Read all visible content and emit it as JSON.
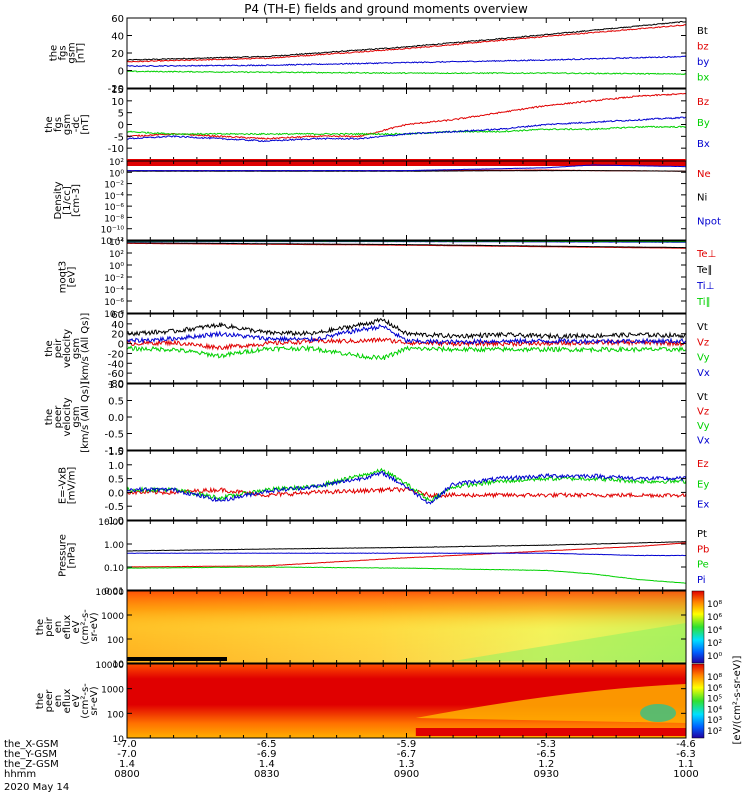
{
  "title": "P4 (TH-E) fields and ground moments overview",
  "colors": {
    "black": "#000000",
    "red": "#e00000",
    "green": "#00d000",
    "blue": "#0000d0"
  },
  "chart_data": [
    {
      "id": "fgs_gsm_total",
      "type": "line",
      "ylabel": [
        "the",
        "fgs",
        "gsm",
        "[nT]"
      ],
      "ylim": [
        -20,
        60
      ],
      "yticks": [
        -20,
        0,
        20,
        40,
        60
      ],
      "yscale": "linear",
      "x_minutes": [
        0,
        30,
        60,
        90,
        120
      ],
      "series": [
        {
          "name": "Bt",
          "color": "black",
          "values": [
            12,
            16,
            27,
            41,
            56
          ]
        },
        {
          "name": "bz",
          "color": "red",
          "values": [
            10,
            14,
            25,
            39,
            52
          ]
        },
        {
          "name": "by",
          "color": "blue",
          "values": [
            5,
            6,
            9,
            12,
            16
          ]
        },
        {
          "name": "bx",
          "color": "green",
          "values": [
            -1,
            -2,
            -3,
            -3,
            -4
          ]
        }
      ]
    },
    {
      "id": "fgs_gsm_dc",
      "type": "line",
      "ylabel": [
        "the",
        "fgs",
        "gsm",
        "-dc",
        "[nT]"
      ],
      "ylim": [
        -15,
        15
      ],
      "yticks": [
        -10,
        -5,
        0,
        5,
        10,
        15
      ],
      "yscale": "linear",
      "x_minutes": [
        0,
        10,
        20,
        30,
        40,
        50,
        60,
        70,
        80,
        90,
        100,
        110,
        120
      ],
      "series": [
        {
          "name": "Bz",
          "color": "red",
          "values": [
            -5,
            -4,
            -5,
            -6,
            -5,
            -5,
            0,
            2,
            5,
            8,
            10,
            12,
            13
          ]
        },
        {
          "name": "By",
          "color": "green",
          "values": [
            -3,
            -4,
            -4,
            -4,
            -4,
            -4,
            -4,
            -3,
            -3,
            -2,
            -2,
            -1,
            -1
          ]
        },
        {
          "name": "Bx",
          "color": "blue",
          "values": [
            -6,
            -5,
            -6,
            -7,
            -6,
            -6,
            -4,
            -3,
            -2,
            0,
            1,
            2,
            3
          ]
        }
      ]
    },
    {
      "id": "density",
      "type": "line",
      "ylabel": [
        "Density",
        "[1/cc]",
        "[cm-3]"
      ],
      "ylim_log10": [
        -12,
        2
      ],
      "ytick_labels": [
        "10²",
        "10⁰",
        "10⁻²",
        "10⁻⁴",
        "10⁻⁶",
        "10⁻⁸",
        "10⁻¹⁰",
        "10⁻¹²"
      ],
      "yscale": "log",
      "x_minutes": [
        0,
        30,
        60,
        90,
        100,
        120
      ],
      "series": [
        {
          "name": "Ne",
          "color": "red",
          "log10_values": [
            0.3,
            0.3,
            0.3,
            0.4,
            0.3,
            0.2
          ]
        },
        {
          "name": "Ni",
          "color": "black",
          "log10_values": [
            0.2,
            0.2,
            0.2,
            0.3,
            0.3,
            0.2
          ]
        },
        {
          "name": "Npot",
          "color": "blue",
          "log10_values": [
            0.3,
            0.3,
            0.3,
            0.8,
            1.3,
            1.0
          ]
        }
      ]
    },
    {
      "id": "temperature",
      "type": "line",
      "ylabel": [
        "moqt3",
        "[eV]"
      ],
      "ylim_log10": [
        -8,
        4
      ],
      "ytick_labels": [
        "10⁴",
        "10²",
        "10⁰",
        "10⁻²",
        "10⁻⁴",
        "10⁻⁶",
        "10⁻⁸"
      ],
      "yscale": "log",
      "x_minutes": [
        0,
        60,
        120
      ],
      "series": [
        {
          "name": "Te⊥",
          "color": "red",
          "log10_values": [
            3.6,
            3.3,
            2.8
          ]
        },
        {
          "name": "Te∥",
          "color": "black",
          "log10_values": [
            3.7,
            3.4,
            2.9
          ]
        },
        {
          "name": "Ti⊥",
          "color": "blue",
          "log10_values": [
            3.9,
            3.9,
            3.8
          ]
        },
        {
          "name": "Ti∥",
          "color": "green",
          "log10_values": [
            3.95,
            3.95,
            3.9
          ]
        }
      ]
    },
    {
      "id": "peir_velocity",
      "type": "line",
      "ylabel": [
        "the",
        "peir",
        "velocity",
        "gsm",
        "[km/s (All Qs)]"
      ],
      "ylim": [
        -80,
        60
      ],
      "yticks": [
        -80,
        -60,
        -40,
        -20,
        0,
        20,
        40,
        60
      ],
      "yscale": "linear",
      "x_minutes": [
        0,
        10,
        20,
        30,
        40,
        50,
        55,
        60,
        70,
        80,
        90,
        100,
        110,
        120
      ],
      "series": [
        {
          "name": "Vt",
          "color": "black",
          "values": [
            20,
            25,
            38,
            22,
            20,
            38,
            48,
            20,
            15,
            18,
            15,
            16,
            18,
            16
          ]
        },
        {
          "name": "Vz",
          "color": "red",
          "values": [
            0,
            2,
            -8,
            0,
            5,
            5,
            8,
            2,
            0,
            0,
            0,
            2,
            2,
            0
          ]
        },
        {
          "name": "Vy",
          "color": "green",
          "values": [
            -10,
            -12,
            -25,
            -10,
            -10,
            -25,
            -30,
            -10,
            -12,
            -12,
            -12,
            -12,
            -12,
            -12
          ]
        },
        {
          "name": "Vx",
          "color": "blue",
          "values": [
            5,
            10,
            20,
            10,
            8,
            28,
            35,
            5,
            3,
            5,
            5,
            5,
            5,
            5
          ]
        }
      ]
    },
    {
      "id": "peer_velocity",
      "type": "line",
      "ylabel": [
        "the",
        "peer",
        "velocity",
        "gsm",
        "[km/s (All Qs)]"
      ],
      "ylim": [
        -1.0,
        1.0
      ],
      "yticks": [
        -1.0,
        -0.5,
        0.0,
        0.5,
        1.0
      ],
      "yscale": "linear",
      "x_minutes": [],
      "series": [
        {
          "name": "Vt",
          "color": "black",
          "values": []
        },
        {
          "name": "Vz",
          "color": "red",
          "values": []
        },
        {
          "name": "Vy",
          "color": "green",
          "values": []
        },
        {
          "name": "Vx",
          "color": "blue",
          "values": []
        }
      ]
    },
    {
      "id": "efield",
      "type": "line",
      "ylabel": [
        "E=-VxB",
        "[mV/m]"
      ],
      "ylim": [
        -1.0,
        1.5
      ],
      "yticks": [
        -1.0,
        -0.5,
        0.0,
        0.5,
        1.0,
        1.5
      ],
      "yscale": "linear",
      "x_minutes": [
        0,
        10,
        20,
        30,
        40,
        50,
        55,
        60,
        65,
        70,
        80,
        90,
        100,
        110,
        120
      ],
      "series": [
        {
          "name": "Ez",
          "color": "red",
          "values": [
            0,
            0,
            0.1,
            -0.1,
            0,
            0.05,
            0.1,
            0.1,
            -0.1,
            -0.1,
            -0.1,
            -0.1,
            -0.1,
            -0.1,
            -0.1
          ]
        },
        {
          "name": "Ey",
          "color": "green",
          "values": [
            0.1,
            0.1,
            -0.2,
            0.1,
            0.2,
            0.6,
            0.8,
            0.3,
            -0.3,
            0.2,
            0.4,
            0.5,
            0.5,
            0.4,
            0.4
          ]
        },
        {
          "name": "Ex",
          "color": "blue",
          "values": [
            0.1,
            0.1,
            -0.3,
            0.05,
            0.2,
            0.5,
            0.7,
            0.2,
            -0.4,
            0.3,
            0.5,
            0.6,
            0.6,
            0.5,
            0.5
          ]
        }
      ]
    },
    {
      "id": "pressure",
      "type": "line",
      "ylabel": [
        "Pressure",
        "[nPa]"
      ],
      "ylim_log10": [
        -2,
        1
      ],
      "ytick_labels": [
        "10.00",
        "1.00",
        "0.10",
        "0.01"
      ],
      "yscale": "log",
      "x_minutes": [
        0,
        30,
        60,
        90,
        100,
        110,
        120
      ],
      "series": [
        {
          "name": "Pt",
          "color": "black",
          "log10_values": [
            -0.3,
            -0.22,
            -0.15,
            -0.05,
            0.0,
            0.05,
            0.1
          ]
        },
        {
          "name": "Pb",
          "color": "red",
          "log10_values": [
            -1.0,
            -0.95,
            -0.6,
            -0.3,
            -0.2,
            -0.1,
            0.05
          ]
        },
        {
          "name": "Pe",
          "color": "green",
          "log10_values": [
            -1.05,
            -1.0,
            -1.05,
            -1.15,
            -1.3,
            -1.55,
            -1.7
          ]
        },
        {
          "name": "Pi",
          "color": "blue",
          "log10_values": [
            -0.4,
            -0.4,
            -0.4,
            -0.4,
            -0.45,
            -0.5,
            -0.5
          ]
        }
      ]
    },
    {
      "id": "peir_spectrogram",
      "type": "heatmap",
      "ylabel": [
        "the",
        "peir",
        "en",
        "eflux",
        "eV",
        "(cm²-s-",
        "sr-eV)"
      ],
      "ytick_labels": [
        "10000",
        "1000",
        "100",
        "10"
      ],
      "yscale": "log",
      "colorbar_ticks": [
        "10⁸",
        "10⁶",
        "10⁴",
        "10²",
        "10⁰"
      ]
    },
    {
      "id": "peer_spectrogram",
      "type": "heatmap",
      "ylabel": [
        "the",
        "peer",
        "en",
        "eflux",
        "eV",
        "(cm²-s-",
        "sr-eV)"
      ],
      "ytick_labels": [
        "10000",
        "1000",
        "100",
        "10"
      ],
      "yscale": "log",
      "colorbar_ticks": [
        "10⁸",
        "10⁶",
        "10⁵",
        "10⁴",
        "10³",
        "10²"
      ],
      "colorbar_label": "[eV/(cm²-s-sr-eV)]"
    }
  ],
  "ephemeris": {
    "rows": [
      {
        "label": "the_X-GSM",
        "values": [
          "-7.0",
          "-6.5",
          "-5.9",
          "-5.3",
          "-4.6"
        ]
      },
      {
        "label": "the_Y-GSM",
        "values": [
          "-7.0",
          "-6.9",
          "-6.7",
          "-6.5",
          "-6.3"
        ]
      },
      {
        "label": "the_Z-GSM",
        "values": [
          "1.4",
          "1.4",
          "1.3",
          "1.2",
          "1.1"
        ]
      },
      {
        "label": "hhmm",
        "values": [
          "0800",
          "0830",
          "0900",
          "0930",
          "1000"
        ]
      }
    ],
    "date": "2020 May 14"
  }
}
